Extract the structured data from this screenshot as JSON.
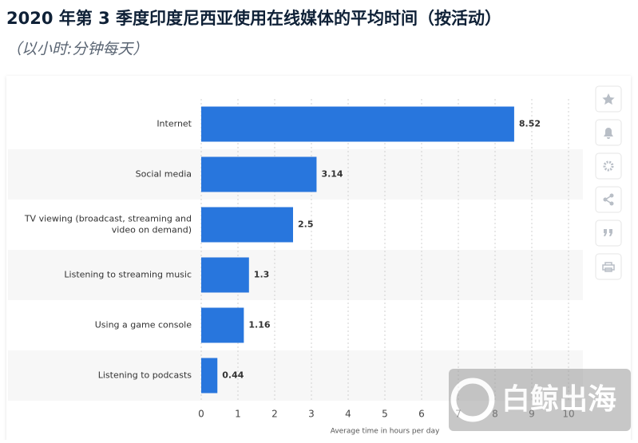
{
  "chart_data": {
    "type": "bar",
    "orientation": "horizontal",
    "title": "2020 年第 3 季度印度尼西亚使用在线媒体的平均时间（按活动）",
    "subtitle": "（以小时:分钟每天）",
    "categories": [
      "Internet",
      "Social media",
      "TV viewing (broadcast, streaming and video on demand)",
      "Listening to streaming music",
      "Using a game console",
      "Listening to podcasts"
    ],
    "values": [
      8.52,
      3.14,
      2.5,
      1.3,
      1.16,
      0.44
    ],
    "color": "#2876dd",
    "xlabel": "Average time in hours per day",
    "xlim": [
      0,
      10
    ],
    "xticks": [
      0,
      1,
      2,
      3,
      4,
      5,
      6,
      7,
      8,
      9,
      10
    ],
    "grid": true
  },
  "watermark": "白鲸出海"
}
